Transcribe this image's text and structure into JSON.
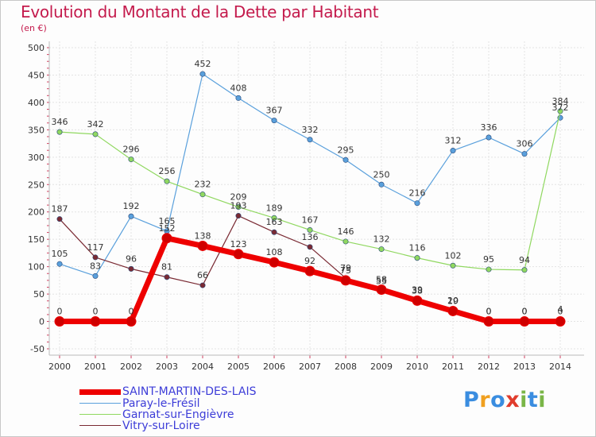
{
  "title": "Evolution du Montant de la Dette par Habitant",
  "unit_label": "(en €)",
  "logo": {
    "text": "Proxiti",
    "letters": [
      "P",
      "r",
      "o",
      "x",
      "i",
      "t",
      "i"
    ],
    "colors": [
      "#3a8de0",
      "#f0a020",
      "#3a8de0",
      "#e03c2c",
      "#7ab648",
      "#3a8de0",
      "#7ab648"
    ]
  },
  "chart_data": {
    "type": "line",
    "title": "Evolution du Montant de la Dette par Habitant",
    "ylabel": "(en €)",
    "xlabel": "",
    "ylim": [
      -50,
      500
    ],
    "yticks": [
      -50,
      0,
      50,
      100,
      150,
      200,
      250,
      300,
      350,
      400,
      450,
      500
    ],
    "categories": [
      "2000",
      "2001",
      "2002",
      "2003",
      "2004",
      "2005",
      "2006",
      "2007",
      "2008",
      "2009",
      "2010",
      "2011",
      "2012",
      "2013",
      "2014"
    ],
    "series": [
      {
        "name": "Paray-le-Frésil",
        "color": "#5aa0dc",
        "values": [
          105,
          83,
          192,
          165,
          452,
          408,
          367,
          332,
          295,
          250,
          216,
          312,
          336,
          306,
          372
        ]
      },
      {
        "name": "Garnat-sur-Engièvre",
        "color": "#90d860",
        "values": [
          346,
          342,
          296,
          256,
          232,
          209,
          189,
          167,
          146,
          132,
          116,
          102,
          95,
          94,
          384
        ]
      },
      {
        "name": "Vitry-sur-Loire",
        "color": "#7a2a33",
        "values": [
          187,
          117,
          96,
          81,
          66,
          193,
          163,
          136,
          79,
          55,
          39,
          20,
          0,
          0,
          4
        ]
      },
      {
        "name": "SAINT-MARTIN-DES-LAIS",
        "color": "#ee0000",
        "values": [
          0,
          0,
          0,
          152,
          138,
          123,
          108,
          92,
          75,
          58,
          38,
          19,
          0,
          0,
          0
        ]
      }
    ],
    "legend": [
      "SAINT-MARTIN-DES-LAIS",
      "Paray-le-Frésil",
      "Garnat-sur-Engièvre",
      "Vitry-sur-Loire"
    ],
    "legend_position": "bottom-left"
  }
}
